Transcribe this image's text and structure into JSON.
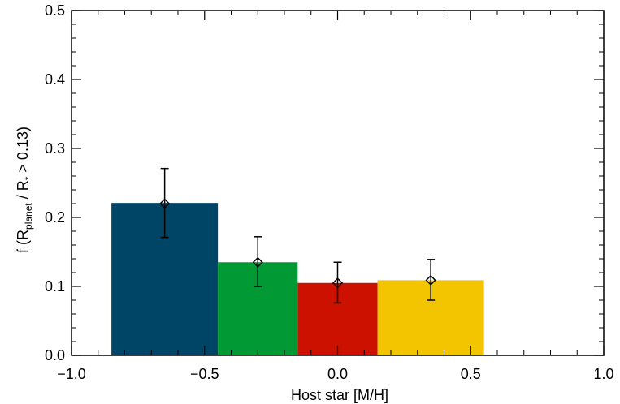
{
  "chart_data": {
    "type": "bar",
    "title": "",
    "xlabel": "Host star [M/H]",
    "ylabel": {
      "prefix": "f (R",
      "sub1": "planet",
      "middle": " / R",
      "sub2": "*",
      "suffix": " > 0.13)"
    },
    "xlim": [
      -1.0,
      1.0
    ],
    "ylim": [
      0.0,
      0.5
    ],
    "xticks": [
      -1.0,
      -0.5,
      0.0,
      0.5,
      1.0
    ],
    "xtick_labels": [
      "−1.0",
      "−0.5",
      "0.0",
      "0.5",
      "1.0"
    ],
    "yticks": [
      0.0,
      0.1,
      0.2,
      0.3,
      0.4,
      0.5
    ],
    "ytick_labels": [
      "0.0",
      "0.1",
      "0.2",
      "0.3",
      "0.4",
      "0.5"
    ],
    "bars": [
      {
        "x0": -0.85,
        "x1": -0.45,
        "value": 0.221,
        "color": "#004466"
      },
      {
        "x0": -0.45,
        "x1": -0.15,
        "value": 0.135,
        "color": "#009933"
      },
      {
        "x0": -0.15,
        "x1": 0.15,
        "value": 0.105,
        "color": "#cc1100"
      },
      {
        "x0": 0.15,
        "x1": 0.55,
        "value": 0.109,
        "color": "#f2c500"
      }
    ],
    "points": [
      {
        "x": -0.65,
        "y": 0.22,
        "err_low": 0.171,
        "err_high": 0.271
      },
      {
        "x": -0.3,
        "y": 0.135,
        "err_low": 0.1,
        "err_high": 0.172
      },
      {
        "x": 0.0,
        "y": 0.105,
        "err_low": 0.076,
        "err_high": 0.135
      },
      {
        "x": 0.35,
        "y": 0.109,
        "err_low": 0.08,
        "err_high": 0.139
      }
    ],
    "grid": false,
    "legend": "none"
  }
}
